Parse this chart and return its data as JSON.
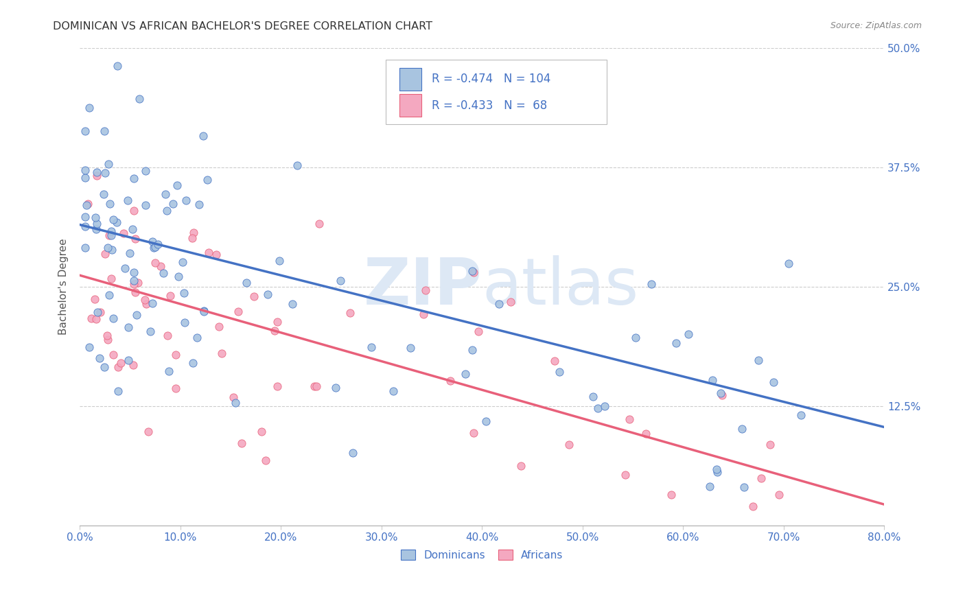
{
  "title": "DOMINICAN VS AFRICAN BACHELOR'S DEGREE CORRELATION CHART",
  "source": "Source: ZipAtlas.com",
  "ylabel": "Bachelor's Degree",
  "xlim": [
    0,
    0.8
  ],
  "ylim": [
    0,
    0.5
  ],
  "xtick_labels": [
    "0.0%",
    "10.0%",
    "20.0%",
    "30.0%",
    "40.0%",
    "50.0%",
    "60.0%",
    "70.0%",
    "80.0%"
  ],
  "xtick_vals": [
    0.0,
    0.1,
    0.2,
    0.3,
    0.4,
    0.5,
    0.6,
    0.7,
    0.8
  ],
  "ytick_labels": [
    "12.5%",
    "25.0%",
    "37.5%",
    "50.0%"
  ],
  "ytick_vals": [
    0.125,
    0.25,
    0.375,
    0.5
  ],
  "dominicans_color": "#a8c4e0",
  "africans_color": "#f4a8c0",
  "line_dominicans_color": "#4472c4",
  "line_africans_color": "#e8607a",
  "tick_color": "#4472c4",
  "watermark_color": "#e0e8f0",
  "r_dominicans": -0.474,
  "n_dominicans": 104,
  "r_africans": -0.433,
  "n_africans": 68,
  "dom_intercept": 0.315,
  "dom_slope": -0.26,
  "afr_intercept": 0.265,
  "afr_slope": -0.295
}
